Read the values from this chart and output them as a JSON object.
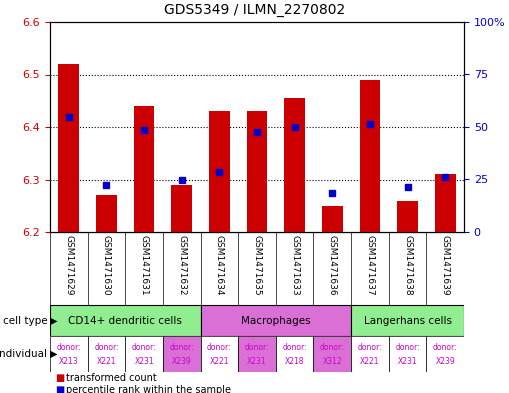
{
  "title": "GDS5349 / ILMN_2270802",
  "samples": [
    "GSM1471629",
    "GSM1471630",
    "GSM1471631",
    "GSM1471632",
    "GSM1471634",
    "GSM1471635",
    "GSM1471633",
    "GSM1471636",
    "GSM1471637",
    "GSM1471638",
    "GSM1471639"
  ],
  "red_vals": [
    6.52,
    6.27,
    6.44,
    6.29,
    6.43,
    6.43,
    6.455,
    6.25,
    6.49,
    6.26,
    6.31
  ],
  "blue_vals": [
    6.42,
    6.29,
    6.395,
    6.3,
    6.315,
    6.39,
    6.4,
    6.275,
    6.405,
    6.285,
    6.305
  ],
  "ylim": [
    6.2,
    6.6
  ],
  "yticks_left": [
    6.2,
    6.3,
    6.4,
    6.5,
    6.6
  ],
  "yticks_right": [
    0,
    25,
    50,
    75,
    100
  ],
  "grid_lines": [
    6.3,
    6.4,
    6.5
  ],
  "cell_types": [
    {
      "label": "CD14+ dendritic cells",
      "start": 0,
      "end": 4,
      "color": "#90ee90"
    },
    {
      "label": "Macrophages",
      "start": 4,
      "end": 8,
      "color": "#da70d6"
    },
    {
      "label": "Langerhans cells",
      "start": 8,
      "end": 11,
      "color": "#90ee90"
    }
  ],
  "donors": [
    "donor:\nX213",
    "donor:\nX221",
    "donor:\nX231",
    "donor:\nX239",
    "donor:\nX221",
    "donor:\nX231",
    "donor:\nX218",
    "donor:\nX312",
    "donor:\nX221",
    "donor:\nX231",
    "donor:\nX239"
  ],
  "donor_colors": [
    "#ffffff",
    "#ffffff",
    "#ffffff",
    "#da70d6",
    "#ffffff",
    "#da70d6",
    "#ffffff",
    "#da70d6",
    "#ffffff",
    "#ffffff",
    "#ffffff"
  ],
  "label_bg": "#d3d3d3",
  "bar_color": "#cc0000",
  "marker_color": "#0000cc"
}
